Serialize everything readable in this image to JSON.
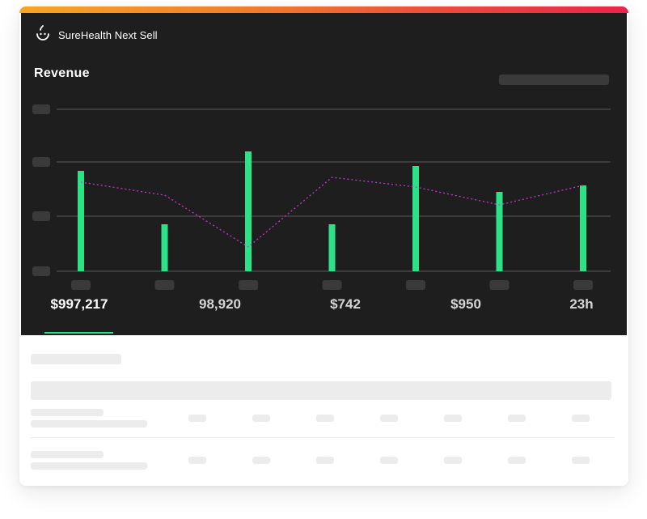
{
  "app": {
    "brand_name": "SureHealth Next Sell",
    "brand_icon": "smile-drop-icon"
  },
  "chart": {
    "title": "Revenue"
  },
  "chart_data": {
    "type": "bar",
    "categories": [
      "",
      "",
      "",
      "",
      "",
      "",
      ""
    ],
    "series": [
      {
        "type": "bar",
        "values": [
          62,
          29,
          74,
          29,
          65,
          49,
          53
        ],
        "color": "#2be386"
      },
      {
        "type": "line",
        "style": "dotted",
        "values": [
          55,
          47,
          15,
          58,
          52,
          41,
          53
        ],
        "color": "#c23bc9"
      }
    ],
    "ylim": [
      0,
      100
    ],
    "grid": true
  },
  "tabs": [
    {
      "label": "$997,217",
      "active": true
    },
    {
      "label": "98,920",
      "active": false
    },
    {
      "label": "$742",
      "active": false
    },
    {
      "label": "$950",
      "active": false
    },
    {
      "label": "23h",
      "active": false
    }
  ],
  "colors": {
    "accent": "#2be386",
    "line": "#c23bc9",
    "panel": "#1e1e1e",
    "gradient_start": "#f6a623",
    "gradient_end": "#e8254a"
  }
}
